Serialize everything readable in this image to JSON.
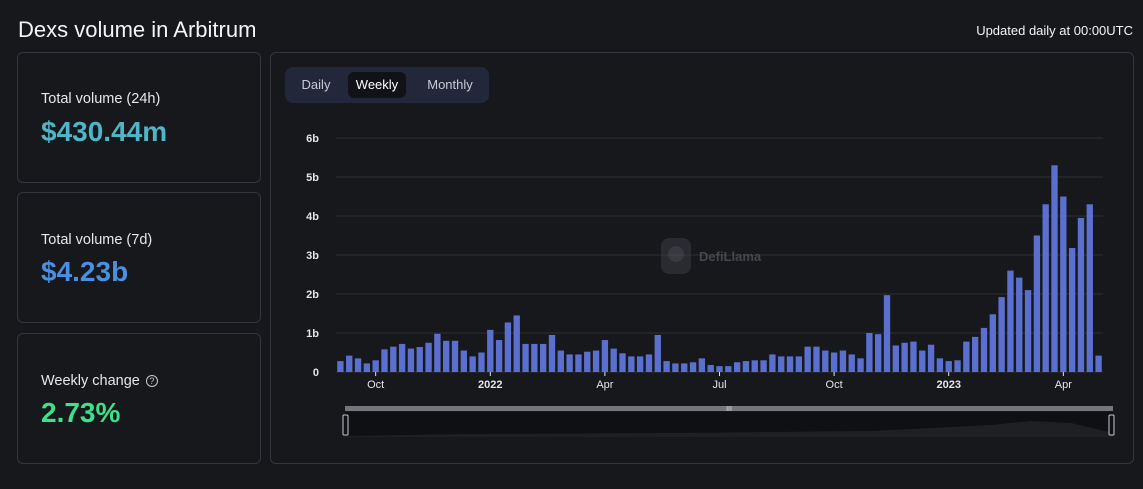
{
  "header": {
    "title": "Dexs volume in Arbitrum",
    "updated": "Updated daily at 00:00UTC"
  },
  "stats": [
    {
      "label": "Total volume (24h)",
      "value": "$430.44m",
      "color": "#4fb5c7"
    },
    {
      "label": "Total volume (7d)",
      "value": "$4.23b",
      "color": "#4b8fe0"
    },
    {
      "label": "Weekly change",
      "value": "2.73%",
      "color": "#3ee08a",
      "help_icon": "help-circle-icon"
    }
  ],
  "tabs": [
    {
      "label": "Daily",
      "active": false
    },
    {
      "label": "Weekly",
      "active": true
    },
    {
      "label": "Monthly",
      "active": false
    }
  ],
  "watermark": "DefiLlama",
  "chart_data": {
    "type": "bar",
    "series_color": "#5a6fce",
    "ylim": [
      0,
      6
    ],
    "y_ticks": [
      0,
      1,
      2,
      3,
      4,
      5,
      6
    ],
    "y_tick_labels": [
      "0",
      "1b",
      "2b",
      "3b",
      "4b",
      "5b",
      "6b"
    ],
    "x_tick_labels": [
      {
        "label": "Oct",
        "index": 4,
        "bold": false
      },
      {
        "label": "2022",
        "index": 17,
        "bold": true
      },
      {
        "label": "Apr",
        "index": 30,
        "bold": false
      },
      {
        "label": "Jul",
        "index": 43,
        "bold": false
      },
      {
        "label": "Oct",
        "index": 56,
        "bold": false
      },
      {
        "label": "2023",
        "index": 69,
        "bold": true
      },
      {
        "label": "Apr",
        "index": 82,
        "bold": false
      }
    ],
    "values": [
      0.28,
      0.42,
      0.35,
      0.22,
      0.3,
      0.58,
      0.65,
      0.72,
      0.6,
      0.64,
      0.75,
      0.98,
      0.8,
      0.8,
      0.55,
      0.4,
      0.5,
      1.08,
      0.82,
      1.27,
      1.45,
      0.72,
      0.72,
      0.72,
      0.95,
      0.55,
      0.45,
      0.45,
      0.52,
      0.55,
      0.82,
      0.6,
      0.48,
      0.4,
      0.4,
      0.45,
      0.95,
      0.28,
      0.22,
      0.22,
      0.25,
      0.35,
      0.18,
      0.15,
      0.15,
      0.25,
      0.28,
      0.3,
      0.3,
      0.45,
      0.4,
      0.4,
      0.4,
      0.65,
      0.65,
      0.55,
      0.5,
      0.55,
      0.45,
      0.35,
      1.0,
      0.97,
      1.97,
      0.68,
      0.75,
      0.78,
      0.55,
      0.7,
      0.35,
      0.28,
      0.3,
      0.78,
      0.9,
      1.13,
      1.48,
      1.92,
      2.6,
      2.42,
      2.1,
      3.5,
      4.3,
      5.3,
      4.5,
      3.18,
      3.95,
      4.3,
      0.42
    ]
  }
}
